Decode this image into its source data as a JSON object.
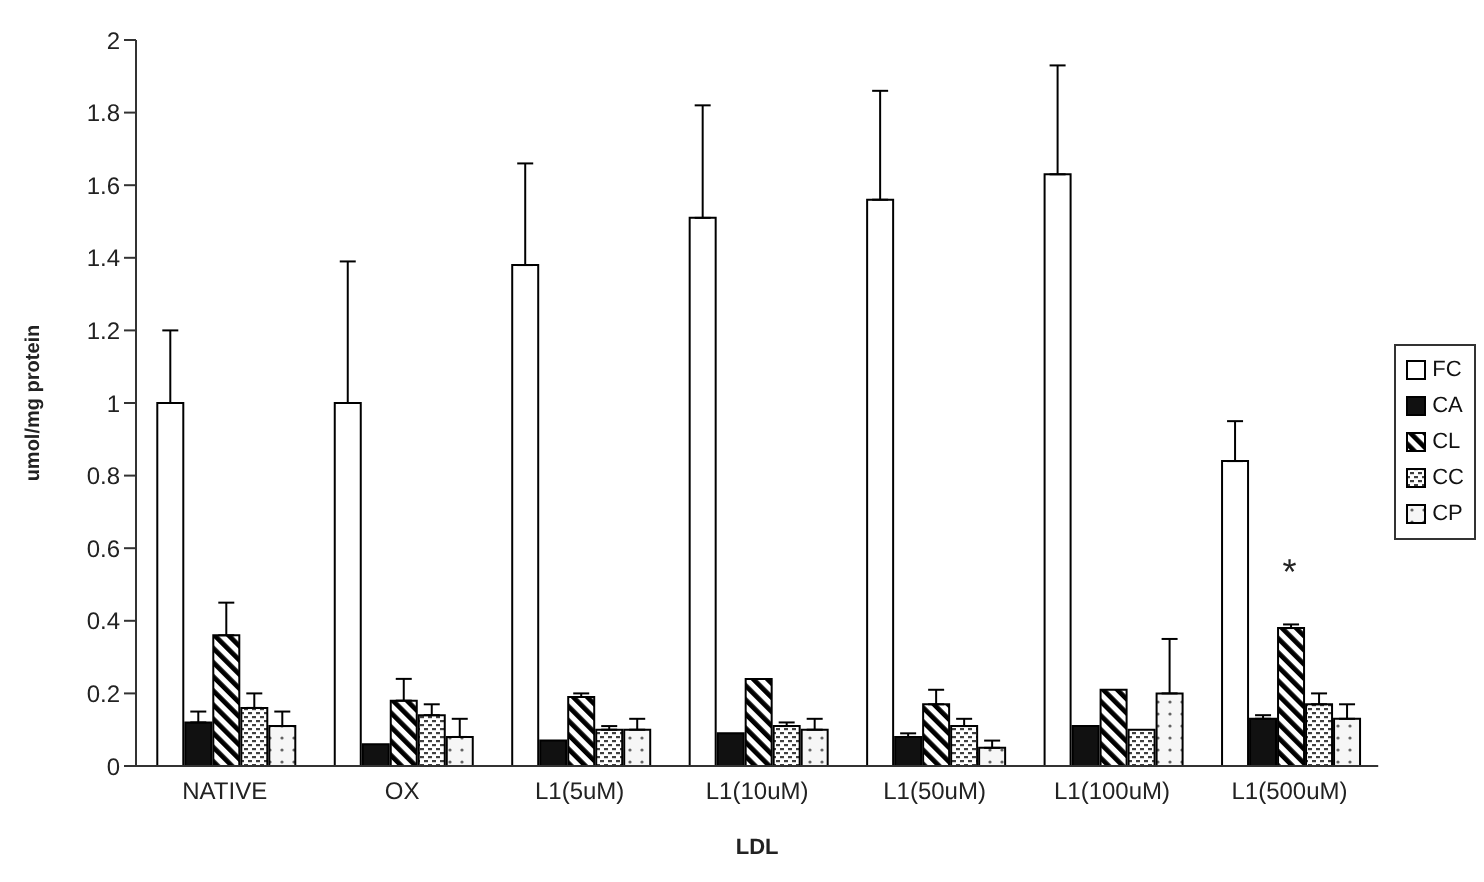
{
  "chart_data": {
    "type": "bar",
    "xlabel": "LDL",
    "ylabel": "umol/mg protein",
    "categories": [
      "NATIVE",
      "OX",
      "L1(5uM)",
      "L1(10uM)",
      "L1(50uM)",
      "L1(100uM)",
      "L1(500uM)"
    ],
    "series": [
      {
        "name": "FC",
        "color": "#ffffff",
        "values": [
          1.0,
          1.0,
          1.38,
          1.51,
          1.56,
          1.63,
          0.84
        ],
        "errors": [
          [
            1.0,
            1.2
          ],
          [
            1.0,
            1.39
          ],
          [
            1.38,
            1.66
          ],
          [
            1.51,
            1.82
          ],
          [
            1.56,
            1.86
          ],
          [
            1.63,
            1.93
          ],
          [
            0.84,
            0.95
          ]
        ]
      },
      {
        "name": "CA",
        "color": "#111111",
        "values": [
          0.12,
          0.06,
          0.07,
          0.09,
          0.08,
          0.11,
          0.13
        ],
        "errors": [
          [
            0.12,
            0.15
          ],
          null,
          null,
          null,
          [
            0.08,
            0.09
          ],
          null,
          [
            0.13,
            0.14
          ]
        ]
      },
      {
        "name": "CL",
        "color": "#000000",
        "values": [
          0.36,
          0.18,
          0.19,
          0.24,
          0.17,
          0.21,
          0.38
        ],
        "errors": [
          [
            0.36,
            0.45
          ],
          [
            0.18,
            0.24
          ],
          [
            0.19,
            0.2
          ],
          null,
          [
            0.17,
            0.21
          ],
          null,
          [
            0.38,
            0.39
          ]
        ]
      },
      {
        "name": "CC",
        "color": "#000000",
        "values": [
          0.16,
          0.14,
          0.1,
          0.11,
          0.11,
          0.1,
          0.17
        ],
        "errors": [
          [
            0.16,
            0.2
          ],
          [
            0.14,
            0.17
          ],
          [
            0.1,
            0.11
          ],
          [
            0.11,
            0.12
          ],
          [
            0.11,
            0.13
          ],
          null,
          [
            0.17,
            0.2
          ]
        ]
      },
      {
        "name": "CP",
        "color": "#000000",
        "values": [
          0.11,
          0.08,
          0.1,
          0.1,
          0.05,
          0.2,
          0.13
        ],
        "errors": [
          [
            0.11,
            0.15
          ],
          [
            0.08,
            0.13
          ],
          [
            0.1,
            0.13
          ],
          [
            0.1,
            0.13
          ],
          [
            0.05,
            0.07
          ],
          [
            0.2,
            0.35
          ],
          [
            0.13,
            0.17
          ]
        ]
      }
    ],
    "ylim": [
      0,
      2
    ],
    "yticks": [
      0,
      0.2,
      0.4,
      0.6,
      0.8,
      1,
      1.2,
      1.4,
      1.6,
      1.8,
      2
    ],
    "legend": "right",
    "annotations": [
      "*"
    ]
  }
}
